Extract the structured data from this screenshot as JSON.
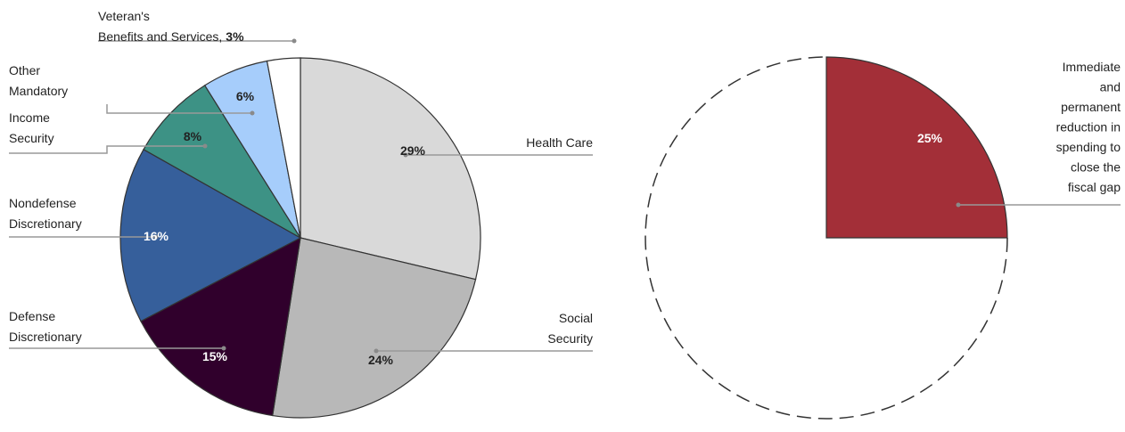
{
  "chart_data": [
    {
      "type": "pie",
      "title": "",
      "start_angle_deg": 0,
      "direction": "clockwise",
      "slices": [
        {
          "label_lines": [
            "Health Care"
          ],
          "value": 29,
          "pct_label": "29%",
          "color": "#d9d9d9",
          "pct_color": "#222222"
        },
        {
          "label_lines": [
            "Social",
            "Security"
          ],
          "value": 24,
          "pct_label": "24%",
          "color": "#b8b8b8",
          "pct_color": "#222222"
        },
        {
          "label_lines": [
            "Defense",
            "Discretionary"
          ],
          "value": 15,
          "pct_label": "15%",
          "color": "#30002c",
          "pct_color": "#ffffff"
        },
        {
          "label_lines": [
            "Nondefense",
            "Discretionary"
          ],
          "value": 16,
          "pct_label": "16%",
          "color": "#365f9b",
          "pct_color": "#ffffff"
        },
        {
          "label_lines": [
            "Income",
            "Security"
          ],
          "value": 8,
          "pct_label": "8%",
          "color": "#3d9285",
          "pct_color": "#222222"
        },
        {
          "label_lines": [
            "Other",
            "Mandatory"
          ],
          "value": 6,
          "pct_label": "6%",
          "color": "#a6cdfb",
          "pct_color": "#222222"
        },
        {
          "label_lines": [
            "Veteran's",
            "Benefits and Services,"
          ],
          "value": 3,
          "pct_label": "3%",
          "color": "#ffffff",
          "pct_color": "#222222"
        }
      ]
    },
    {
      "type": "pie",
      "title": "",
      "slices": [
        {
          "label_lines": [
            "Immediate",
            "and",
            "permanent",
            "reduction in",
            "spending to",
            "close the",
            "fiscal gap"
          ],
          "value": 25,
          "pct_label": "25%",
          "color": "#a32f38",
          "pct_color": "#ffffff"
        }
      ],
      "remainder_outline": "dashed"
    }
  ]
}
